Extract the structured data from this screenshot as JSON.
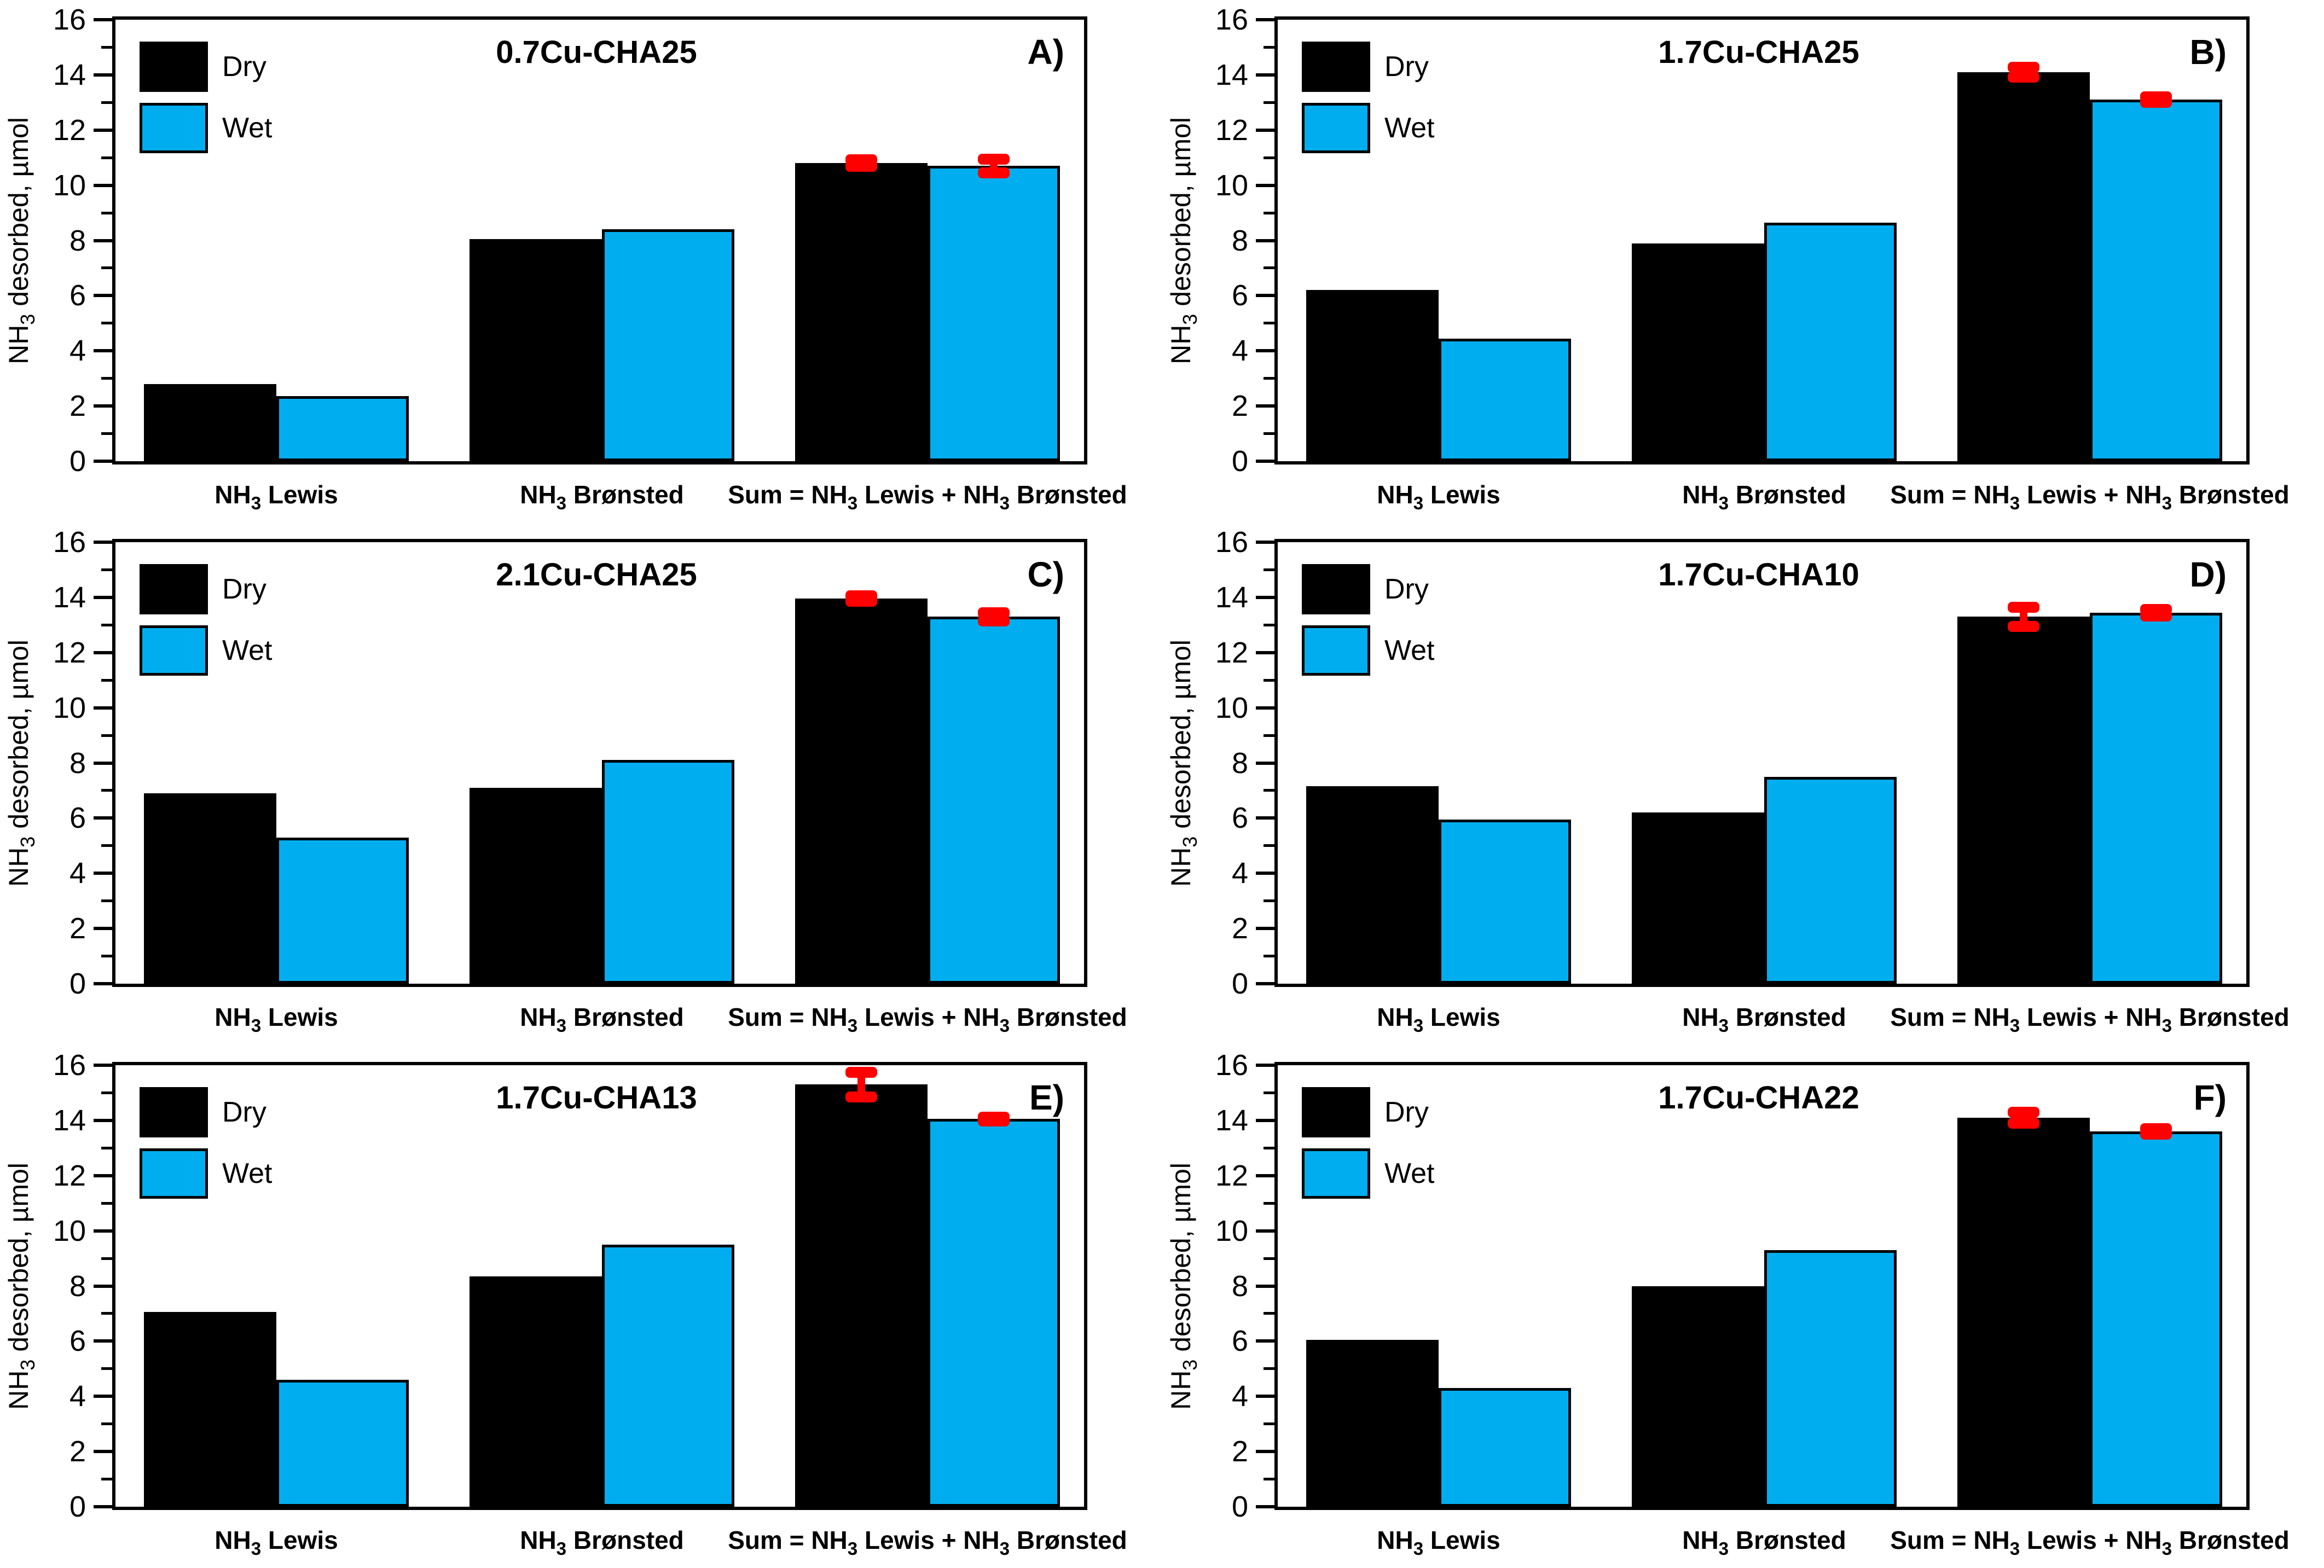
{
  "figure": {
    "background": "#FFFFFF",
    "ylabel": "NH3 desorbed, µmol",
    "yticks": [
      0,
      2,
      4,
      6,
      8,
      10,
      12,
      14,
      16
    ],
    "ylim": [
      0,
      16
    ],
    "categories": [
      "NH3 Lewis",
      "NH3 Brønsted",
      "Sum = NH3 Lewis + NH3 Brønsted"
    ],
    "legend": {
      "position": "top-left-inside",
      "entries": [
        {
          "label": "Dry",
          "color": "#000000"
        },
        {
          "label": "Wet",
          "color": "#00AEEF"
        }
      ]
    },
    "error_bar_color": "#FF0000"
  },
  "chart_data": [
    {
      "type": "bar",
      "panel_label": "A)",
      "title": "0.7Cu-CHA25",
      "categories": [
        "NH3 Lewis",
        "NH3 Brønsted",
        "Sum = NH3 Lewis + NH3 Brønsted"
      ],
      "series": [
        {
          "name": "Dry",
          "color": "#000000",
          "values": [
            2.8,
            8.05,
            10.8
          ],
          "errors": [
            null,
            null,
            0.12
          ]
        },
        {
          "name": "Wet",
          "color": "#00AEEF",
          "values": [
            2.35,
            8.4,
            10.7
          ],
          "errors": [
            null,
            null,
            0.25
          ]
        }
      ],
      "xlabel": "",
      "ylabel": "NH3 desorbed, µmol",
      "ylim": [
        0,
        16
      ],
      "grid": false
    },
    {
      "type": "bar",
      "panel_label": "B)",
      "title": "1.7Cu-CHA25",
      "categories": [
        "NH3 Lewis",
        "NH3 Brønsted",
        "Sum = NH3 Lewis + NH3 Brønsted"
      ],
      "series": [
        {
          "name": "Dry",
          "color": "#000000",
          "values": [
            6.2,
            7.9,
            14.1
          ],
          "errors": [
            null,
            null,
            0.18
          ]
        },
        {
          "name": "Wet",
          "color": "#00AEEF",
          "values": [
            4.45,
            8.65,
            13.1
          ],
          "errors": [
            null,
            null,
            0.1
          ]
        }
      ],
      "xlabel": "",
      "ylabel": "NH3 desorbed, µmol",
      "ylim": [
        0,
        16
      ],
      "grid": false
    },
    {
      "type": "bar",
      "panel_label": "C)",
      "title": "2.1Cu-CHA25",
      "categories": [
        "NH3 Lewis",
        "NH3 Brønsted",
        "Sum = NH3 Lewis + NH3 Brønsted"
      ],
      "series": [
        {
          "name": "Dry",
          "color": "#000000",
          "values": [
            6.9,
            7.1,
            13.95
          ],
          "errors": [
            null,
            null,
            0.1
          ]
        },
        {
          "name": "Wet",
          "color": "#00AEEF",
          "values": [
            5.3,
            8.1,
            13.3
          ],
          "errors": [
            null,
            null,
            0.15
          ]
        }
      ],
      "xlabel": "",
      "ylabel": "NH3 desorbed, µmol",
      "ylim": [
        0,
        16
      ],
      "grid": false
    },
    {
      "type": "bar",
      "panel_label": "D)",
      "title": "1.7Cu-CHA10",
      "categories": [
        "NH3 Lewis",
        "NH3 Brønsted",
        "Sum = NH3 Lewis + NH3 Brønsted"
      ],
      "series": [
        {
          "name": "Dry",
          "color": "#000000",
          "values": [
            7.15,
            6.2,
            13.3
          ],
          "errors": [
            null,
            null,
            0.35
          ]
        },
        {
          "name": "Wet",
          "color": "#00AEEF",
          "values": [
            5.95,
            7.5,
            13.45
          ],
          "errors": [
            null,
            null,
            0.12
          ]
        }
      ],
      "xlabel": "",
      "ylabel": "NH3 desorbed, µmol",
      "ylim": [
        0,
        16
      ],
      "grid": false
    },
    {
      "type": "bar",
      "panel_label": "E)",
      "title": "1.7Cu-CHA13",
      "categories": [
        "NH3 Lewis",
        "NH3 Brønsted",
        "Sum = NH3 Lewis + NH3 Brønsted"
      ],
      "series": [
        {
          "name": "Dry",
          "color": "#000000",
          "values": [
            7.05,
            8.35,
            15.3
          ],
          "errors": [
            null,
            null,
            0.45
          ]
        },
        {
          "name": "Wet",
          "color": "#00AEEF",
          "values": [
            4.6,
            9.5,
            14.05
          ],
          "errors": [
            null,
            null,
            0.07
          ]
        }
      ],
      "xlabel": "",
      "ylabel": "NH3 desorbed, µmol",
      "ylim": [
        0,
        16
      ],
      "grid": false
    },
    {
      "type": "bar",
      "panel_label": "F)",
      "title": "1.7Cu-CHA22",
      "categories": [
        "NH3 Lewis",
        "NH3 Brønsted",
        "Sum = NH3 Lewis + NH3 Brønsted"
      ],
      "series": [
        {
          "name": "Dry",
          "color": "#000000",
          "values": [
            6.05,
            8.0,
            14.1
          ],
          "errors": [
            null,
            null,
            0.2
          ]
        },
        {
          "name": "Wet",
          "color": "#00AEEF",
          "values": [
            4.3,
            9.3,
            13.6
          ],
          "errors": [
            null,
            null,
            0.1
          ]
        }
      ],
      "xlabel": "",
      "ylabel": "NH3 desorbed, µmol",
      "ylim": [
        0,
        16
      ],
      "grid": false
    }
  ]
}
